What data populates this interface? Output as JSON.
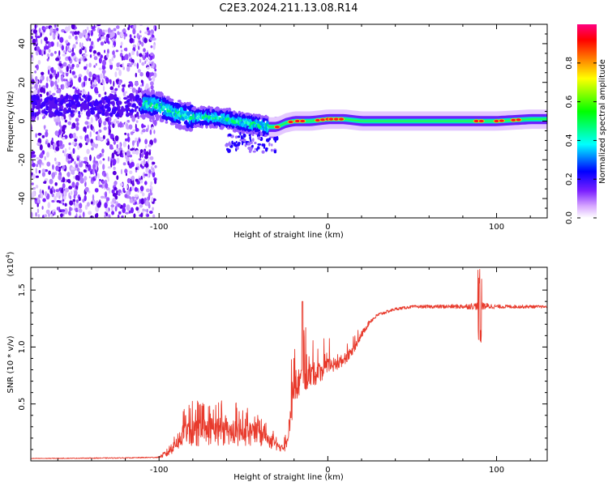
{
  "title": "C2E3.2024.211.13.08.R14",
  "chart_data": [
    {
      "type": "heatmap",
      "xlabel": "Height of straight line (km)",
      "ylabel": "Frequency (Hz)",
      "xlim": [
        -176,
        130
      ],
      "ylim": [
        -50,
        50
      ],
      "x_ticks": [
        -100,
        0,
        100
      ],
      "y_ticks": [
        -40,
        -20,
        0,
        20,
        40
      ],
      "colorbar": {
        "label": "Normalized spectral amplitude",
        "range": [
          0,
          1
        ],
        "ticks": [
          "0.0",
          "0.2",
          "0.4",
          "0.6",
          "0.8"
        ],
        "colormap": [
          "#ffffff",
          "#c070ff",
          "#5500ff",
          "#0000ff",
          "#00ffff",
          "#00ff00",
          "#ffff00",
          "#ff8000",
          "#ff0000",
          "#ff0080"
        ]
      },
      "ridge": {
        "x": [
          -110,
          -100,
          -90,
          -80,
          -70,
          -60,
          -50,
          -40,
          -35,
          -30,
          -25,
          -20,
          -15,
          -10,
          0,
          10,
          20,
          40,
          60,
          80,
          100,
          120,
          130
        ],
        "freq_hz": [
          9,
          8,
          4,
          2,
          2,
          1,
          -1,
          -2,
          -3,
          -3,
          -1,
          0,
          0,
          0,
          1,
          1,
          0,
          0,
          0,
          0,
          0,
          1,
          1
        ]
      },
      "noise_region_x": [
        -176,
        -108
      ]
    },
    {
      "type": "line",
      "xlabel": "Height of straight line (km)",
      "ylabel": "SNR (10 * v/v)",
      "y_multiplier_label": "(x10",
      "y_multiplier_exp": "4",
      "xlim": [
        -176,
        130
      ],
      "ylim": [
        0,
        17000
      ],
      "x_ticks": [
        -100,
        0,
        100
      ],
      "y_ticks": [
        0.5,
        1.0,
        1.5
      ],
      "color": "#e83a2c",
      "series": [
        {
          "name": "SNR",
          "x": [
            -176,
            -120,
            -100,
            -95,
            -90,
            -85,
            -80,
            -70,
            -60,
            -50,
            -40,
            -35,
            -30,
            -27,
            -25,
            -22,
            -20,
            -15,
            -10,
            -5,
            0,
            5,
            10,
            15,
            20,
            25,
            30,
            40,
            50,
            60,
            70,
            80,
            90,
            100,
            110,
            120,
            130
          ],
          "base": [
            200,
            250,
            300,
            600,
            1400,
            2000,
            2100,
            2200,
            2200,
            2100,
            1900,
            1500,
            1200,
            1000,
            1200,
            3500,
            6000,
            6800,
            7200,
            7500,
            8000,
            8300,
            8800,
            9600,
            11000,
            12200,
            12800,
            13300,
            13500,
            13500,
            13500,
            13500,
            13500,
            13500,
            13500,
            13500,
            13500
          ],
          "noise": [
            60,
            80,
            100,
            800,
            1500,
            2000,
            2500,
            2500,
            2400,
            2200,
            1800,
            1200,
            800,
            600,
            1000,
            2500,
            3000,
            2500,
            2200,
            1800,
            1500,
            1200,
            1000,
            700,
            600,
            400,
            300,
            250,
            250,
            300,
            350,
            400,
            700,
            350,
            300,
            300,
            200
          ]
        }
      ]
    }
  ]
}
